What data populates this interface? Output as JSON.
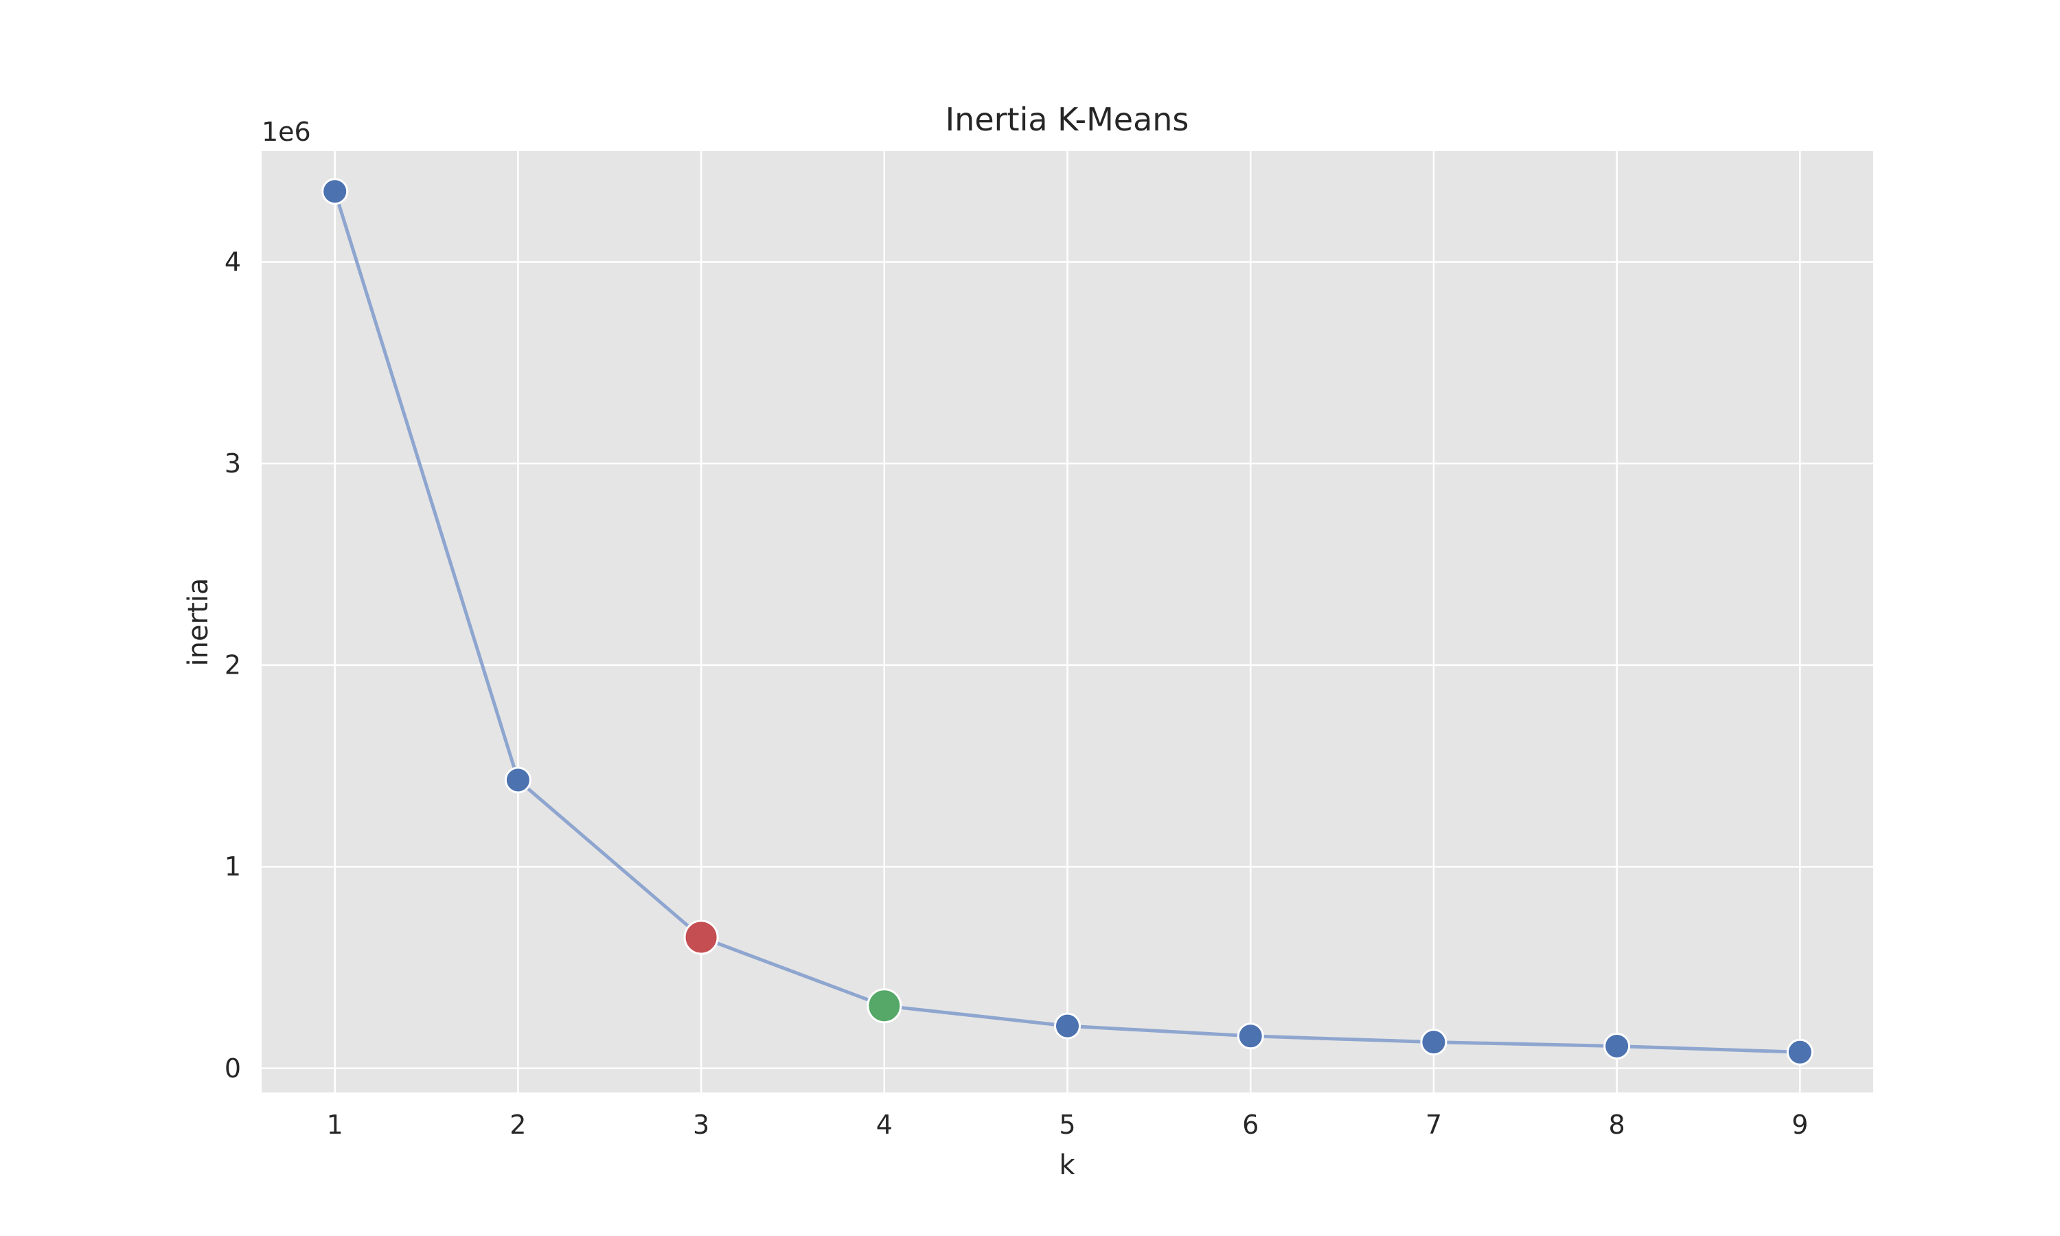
{
  "chart_data": {
    "type": "line",
    "title": "Inertia K-Means",
    "xlabel": "k",
    "ylabel": "inertia",
    "y_offset_label": "1e6",
    "x": [
      1,
      2,
      3,
      4,
      5,
      6,
      7,
      8,
      9
    ],
    "xlim": [
      0.6,
      9.4
    ],
    "ylim": [
      -0.12,
      4.55
    ],
    "x_ticks": [
      1,
      2,
      3,
      4,
      5,
      6,
      7,
      8,
      9
    ],
    "y_ticks": [
      0,
      1,
      2,
      3,
      4
    ],
    "grid": true,
    "series": [
      {
        "values": [
          4.35,
          1.43,
          0.65,
          0.31,
          0.21,
          0.16,
          0.13,
          0.11,
          0.08
        ],
        "line_color": "#8ea6cf",
        "marker_color": "#4c72b0"
      }
    ],
    "highlights": [
      {
        "x": 3,
        "y": 0.65,
        "color": "#c44e52"
      },
      {
        "x": 4,
        "y": 0.31,
        "color": "#55a868"
      }
    ]
  },
  "colors": {
    "plot_background": "#e5e5e5",
    "grid": "#ffffff",
    "marker_edge": "#ffffff"
  }
}
